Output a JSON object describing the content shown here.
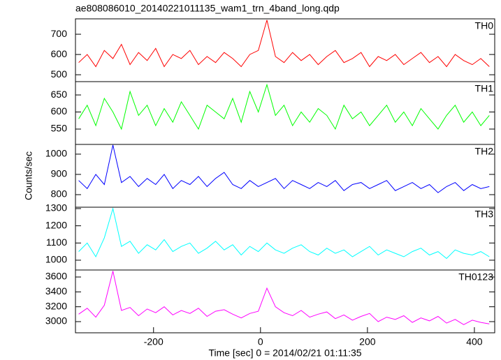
{
  "title": "ae808086010_20140221011135_wam1_trn_4band_long.qdp",
  "y_label": "Counts/sec",
  "x_label": "Time [sec] 0 = 2014/02/21 01:11:35",
  "chart_data": [
    {
      "type": "line",
      "xlim": [
        -346,
        438
      ],
      "ylim": [
        466,
        776
      ],
      "yticks": [
        500,
        600,
        700
      ],
      "x": [
        -340,
        -324,
        -308,
        -292,
        -276,
        -260,
        -244,
        -228,
        -212,
        -196,
        -180,
        -164,
        -148,
        -132,
        -116,
        -100,
        -84,
        -68,
        -52,
        -36,
        -20,
        -4,
        12,
        28,
        44,
        60,
        76,
        92,
        108,
        124,
        140,
        156,
        172,
        188,
        204,
        220,
        236,
        252,
        268,
        284,
        300,
        316,
        332,
        348,
        364,
        380,
        396,
        412,
        428
      ],
      "series": [
        {
          "name": "TH0",
          "color": "#ff0000",
          "values": [
            560,
            600,
            540,
            620,
            580,
            650,
            550,
            610,
            570,
            630,
            540,
            600,
            580,
            620,
            550,
            590,
            560,
            610,
            580,
            540,
            600,
            620,
            770,
            590,
            560,
            610,
            570,
            600,
            550,
            590,
            620,
            560,
            580,
            610,
            540,
            590,
            570,
            600,
            550,
            580,
            610,
            560,
            590,
            540,
            600,
            570,
            550,
            580,
            540
          ]
        }
      ]
    },
    {
      "type": "line",
      "xlim": [
        -346,
        438
      ],
      "ylim": [
        505,
        689
      ],
      "yticks": [
        550,
        600,
        650
      ],
      "x": [
        -340,
        -324,
        -308,
        -292,
        -276,
        -260,
        -244,
        -228,
        -212,
        -196,
        -180,
        -164,
        -148,
        -132,
        -116,
        -100,
        -84,
        -68,
        -52,
        -36,
        -20,
        -4,
        12,
        28,
        44,
        60,
        76,
        92,
        108,
        124,
        140,
        156,
        172,
        188,
        204,
        220,
        236,
        252,
        268,
        284,
        300,
        316,
        332,
        348,
        364,
        380,
        396,
        412,
        428
      ],
      "series": [
        {
          "name": "TH1",
          "color": "#00ff00",
          "values": [
            580,
            620,
            560,
            640,
            600,
            550,
            660,
            590,
            620,
            560,
            610,
            570,
            630,
            590,
            550,
            620,
            600,
            580,
            640,
            570,
            660,
            600,
            680,
            590,
            620,
            560,
            600,
            570,
            610,
            590,
            550,
            620,
            580,
            600,
            560,
            590,
            620,
            570,
            600,
            560,
            610,
            580,
            550,
            590,
            620,
            570,
            600,
            560,
            590
          ]
        }
      ]
    },
    {
      "type": "line",
      "xlim": [
        -346,
        438
      ],
      "ylim": [
        738,
        1048
      ],
      "yticks": [
        800,
        900,
        1000
      ],
      "x": [
        -340,
        -324,
        -308,
        -292,
        -276,
        -260,
        -244,
        -228,
        -212,
        -196,
        -180,
        -164,
        -148,
        -132,
        -116,
        -100,
        -84,
        -68,
        -52,
        -36,
        -20,
        -4,
        12,
        28,
        44,
        60,
        76,
        92,
        108,
        124,
        140,
        156,
        172,
        188,
        204,
        220,
        236,
        252,
        268,
        284,
        300,
        316,
        332,
        348,
        364,
        380,
        396,
        412,
        428
      ],
      "series": [
        {
          "name": "TH2",
          "color": "#0000ff",
          "values": [
            870,
            830,
            900,
            850,
            1045,
            860,
            890,
            840,
            880,
            850,
            900,
            830,
            870,
            850,
            890,
            840,
            880,
            910,
            850,
            830,
            870,
            840,
            860,
            880,
            830,
            870,
            850,
            830,
            860,
            840,
            870,
            820,
            850,
            860,
            830,
            850,
            870,
            820,
            840,
            860,
            830,
            850,
            810,
            840,
            860,
            820,
            850,
            830,
            840
          ]
        }
      ]
    },
    {
      "type": "line",
      "xlim": [
        -346,
        438
      ],
      "ylim": [
        943,
        1308
      ],
      "yticks": [
        1000,
        1100,
        1200,
        1300
      ],
      "x": [
        -340,
        -324,
        -308,
        -292,
        -276,
        -260,
        -244,
        -228,
        -212,
        -196,
        -180,
        -164,
        -148,
        -132,
        -116,
        -100,
        -84,
        -68,
        -52,
        -36,
        -20,
        -4,
        12,
        28,
        44,
        60,
        76,
        92,
        108,
        124,
        140,
        156,
        172,
        188,
        204,
        220,
        236,
        252,
        268,
        284,
        300,
        316,
        332,
        348,
        364,
        380,
        396,
        412,
        428
      ],
      "series": [
        {
          "name": "TH3",
          "color": "#00ffff",
          "values": [
            1050,
            1100,
            1020,
            1130,
            1300,
            1080,
            1110,
            1040,
            1090,
            1060,
            1120,
            1050,
            1080,
            1100,
            1040,
            1070,
            1110,
            1060,
            1090,
            1030,
            1080,
            1050,
            1100,
            1060,
            1040,
            1070,
            1090,
            1050,
            1030,
            1070,
            1040,
            1060,
            1020,
            1050,
            1080,
            1030,
            1060,
            1040,
            1020,
            1050,
            1070,
            1030,
            1050,
            1010,
            1060,
            1040,
            1030,
            1050,
            1020
          ]
        }
      ]
    },
    {
      "type": "line",
      "xlim": [
        -346,
        438
      ],
      "ylim": [
        2850,
        3694
      ],
      "yticks": [
        3000,
        3200,
        3400,
        3600
      ],
      "xticks": [
        -200,
        0,
        200,
        400
      ],
      "x": [
        -340,
        -324,
        -308,
        -292,
        -276,
        -260,
        -244,
        -228,
        -212,
        -196,
        -180,
        -164,
        -148,
        -132,
        -116,
        -100,
        -84,
        -68,
        -52,
        -36,
        -20,
        -4,
        12,
        28,
        44,
        60,
        76,
        92,
        108,
        124,
        140,
        156,
        172,
        188,
        204,
        220,
        236,
        252,
        268,
        284,
        300,
        316,
        332,
        348,
        364,
        380,
        396,
        412,
        428
      ],
      "series": [
        {
          "name": "TH0123",
          "color": "#ff00ff",
          "values": [
            3100,
            3180,
            3060,
            3220,
            3680,
            3150,
            3190,
            3080,
            3170,
            3120,
            3200,
            3090,
            3150,
            3110,
            3180,
            3070,
            3140,
            3160,
            3100,
            3050,
            3110,
            3140,
            3450,
            3200,
            3120,
            3080,
            3150,
            3060,
            3100,
            3130,
            3040,
            3090,
            3020,
            3070,
            3110,
            3000,
            3060,
            3030,
            3080,
            2990,
            3050,
            3010,
            3070,
            2980,
            3030,
            2960,
            3020,
            2990,
            2970
          ]
        }
      ]
    }
  ]
}
